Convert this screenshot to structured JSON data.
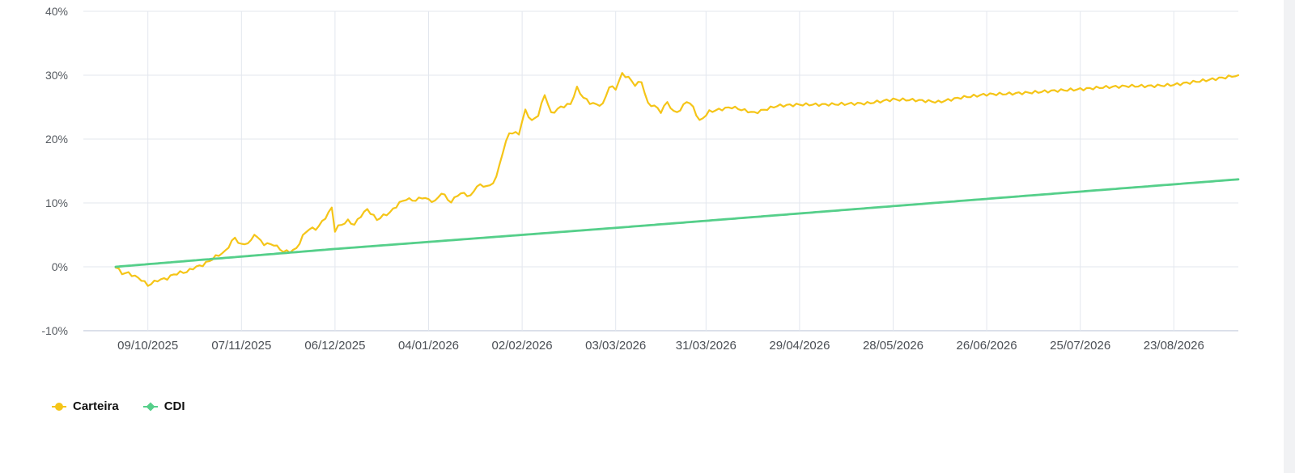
{
  "chart_data": {
    "type": "line",
    "y_unit": "%",
    "ylim": [
      -10,
      40
    ],
    "y_ticks": [
      -10,
      0,
      10,
      20,
      30,
      40
    ],
    "y_tick_labels": [
      "-10%",
      "0%",
      "10%",
      "20%",
      "30%",
      "40%"
    ],
    "x_range": [
      "2025-09-19",
      "2026-09-12"
    ],
    "x_tick_labels": [
      "09/10/2025",
      "07/11/2025",
      "06/12/2025",
      "04/01/2026",
      "02/02/2026",
      "03/03/2026",
      "31/03/2026",
      "29/04/2026",
      "28/05/2026",
      "26/06/2026",
      "25/07/2026",
      "23/08/2026"
    ],
    "x_tick_dates": [
      "2025-10-09",
      "2025-11-07",
      "2025-12-06",
      "2026-01-04",
      "2026-02-02",
      "2026-03-03",
      "2026-03-31",
      "2026-04-29",
      "2026-05-28",
      "2026-06-26",
      "2026-07-25",
      "2026-08-23"
    ],
    "grid": true,
    "legend_position": "bottom-left",
    "series": [
      {
        "name": "Carteira",
        "color": "#f5c518",
        "marker": "circle",
        "x": [
          "2025-09-29",
          "2025-10-01",
          "2025-10-03",
          "2025-10-07",
          "2025-10-09",
          "2025-10-12",
          "2025-10-15",
          "2025-10-17",
          "2025-10-19",
          "2025-10-21",
          "2025-10-23",
          "2025-10-26",
          "2025-10-28",
          "2025-10-30",
          "2025-11-02",
          "2025-11-04",
          "2025-11-05",
          "2025-11-07",
          "2025-11-10",
          "2025-11-11",
          "2025-11-13",
          "2025-11-14",
          "2025-11-17",
          "2025-11-20",
          "2025-11-22",
          "2025-11-24",
          "2025-11-26",
          "2025-11-28",
          "2025-11-30",
          "2025-12-02",
          "2025-12-05",
          "2025-12-06",
          "2025-12-07",
          "2025-12-10",
          "2025-12-12",
          "2025-12-14",
          "2025-12-16",
          "2025-12-19",
          "2025-12-21",
          "2025-12-23",
          "2025-12-26",
          "2025-12-28",
          "2025-12-31",
          "2026-01-02",
          "2026-01-04",
          "2026-01-06",
          "2026-01-08",
          "2026-01-11",
          "2026-01-13",
          "2026-01-15",
          "2026-01-17",
          "2026-01-19",
          "2026-01-21",
          "2026-01-23",
          "2026-01-25",
          "2026-01-27",
          "2026-01-29",
          "2026-01-31",
          "2026-02-01",
          "2026-02-03",
          "2026-02-05",
          "2026-02-07",
          "2026-02-09",
          "2026-02-11",
          "2026-02-14",
          "2026-02-17",
          "2026-02-19",
          "2026-02-21",
          "2026-02-23",
          "2026-02-25",
          "2026-02-27",
          "2026-03-01",
          "2026-03-03",
          "2026-03-05",
          "2026-03-07",
          "2026-03-09",
          "2026-03-11",
          "2026-03-13",
          "2026-03-15",
          "2026-03-17",
          "2026-03-19",
          "2026-03-21",
          "2026-03-23",
          "2026-03-25",
          "2026-03-27",
          "2026-03-29",
          "2026-04-01",
          "2026-04-08",
          "2026-04-15",
          "2026-04-22",
          "2026-04-29",
          "2026-05-06",
          "2026-05-13",
          "2026-05-20",
          "2026-05-28",
          "2026-06-04",
          "2026-06-11",
          "2026-06-18",
          "2026-06-26",
          "2026-07-03",
          "2026-07-10",
          "2026-07-18",
          "2026-07-25",
          "2026-08-01",
          "2026-08-09",
          "2026-08-16",
          "2026-08-23",
          "2026-08-30",
          "2026-09-06",
          "2026-09-12"
        ],
        "values": [
          0.0,
          -1.0,
          -1.0,
          -2.0,
          -2.9,
          -2.1,
          -1.8,
          -1.2,
          -0.9,
          -0.8,
          -0.2,
          0.3,
          0.9,
          1.6,
          2.4,
          4.0,
          4.5,
          3.4,
          4.0,
          5.2,
          4.0,
          3.6,
          3.5,
          2.4,
          2.4,
          2.8,
          4.8,
          6.0,
          5.9,
          7.0,
          9.2,
          5.7,
          6.3,
          7.2,
          6.6,
          8.0,
          9.0,
          7.4,
          8.0,
          8.5,
          10.0,
          10.6,
          10.4,
          10.9,
          10.5,
          10.2,
          11.6,
          10.1,
          11.3,
          11.5,
          11.0,
          12.7,
          12.7,
          12.6,
          14.0,
          18.0,
          21.0,
          20.9,
          20.9,
          24.5,
          22.8,
          23.8,
          27.0,
          24.0,
          25.0,
          25.5,
          28.0,
          26.5,
          25.7,
          25.4,
          25.4,
          28.2,
          27.9,
          30.2,
          29.6,
          28.5,
          29.0,
          25.5,
          25.2,
          24.3,
          25.8,
          24.2,
          24.5,
          26.0,
          25.0,
          22.8,
          24.3,
          25.0,
          24.1,
          25.2,
          25.4,
          25.4,
          25.5,
          25.6,
          26.2,
          26.1,
          25.8,
          26.5,
          27.0,
          27.1,
          27.3,
          27.6,
          27.8,
          28.1,
          28.3,
          28.3,
          28.5,
          29.0,
          29.5,
          30.0
        ]
      },
      {
        "name": "CDI",
        "color": "#55cf8a",
        "marker": "diamond",
        "x": [
          "2025-09-29",
          "2025-12-06",
          "2026-03-03",
          "2026-05-28",
          "2026-09-12"
        ],
        "values": [
          0.0,
          2.8,
          6.1,
          9.5,
          13.7
        ]
      }
    ]
  }
}
